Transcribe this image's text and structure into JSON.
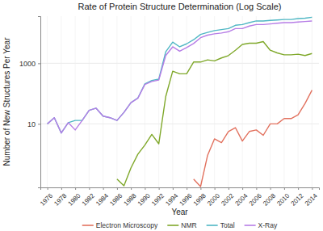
{
  "chart_data": {
    "type": "line",
    "title": "Rate of Protein Structure Determination (Log Scale)",
    "x_label": "Year",
    "y_label": "Number of New Structures Per Year",
    "x": [
      1976,
      1977,
      1978,
      1979,
      1980,
      1981,
      1982,
      1983,
      1984,
      1985,
      1986,
      1987,
      1988,
      1989,
      1990,
      1991,
      1992,
      1993,
      1994,
      1995,
      1996,
      1997,
      1998,
      1999,
      2000,
      2001,
      2002,
      2003,
      2004,
      2005,
      2006,
      2007,
      2008,
      2009,
      2010,
      2011,
      2012,
      2013,
      2014
    ],
    "xlim": [
      1975,
      2015
    ],
    "xticks": [
      1976,
      1978,
      1980,
      1982,
      1984,
      1986,
      1988,
      1990,
      1992,
      1994,
      1996,
      1998,
      2000,
      2002,
      2004,
      2006,
      2008,
      2010,
      2012,
      2014
    ],
    "ylim": [
      0.08,
      36000
    ],
    "yticks": [
      10,
      1000
    ],
    "log": "y",
    "grid": true,
    "legend": "bottom",
    "series": [
      {
        "name": "Electron Microscopy",
        "color": "#e2725f",
        "values": [
          null,
          null,
          null,
          null,
          null,
          null,
          null,
          null,
          null,
          null,
          null,
          null,
          null,
          null,
          null,
          null,
          null,
          null,
          null,
          null,
          null,
          0.15,
          0.085,
          0.9,
          3.2,
          2.4,
          5.6,
          7.5,
          2.7,
          5.6,
          6.3,
          4.2,
          10,
          10,
          15,
          15,
          20,
          47,
          130
        ]
      },
      {
        "name": "NMR",
        "color": "#7fa82a",
        "values": [
          null,
          null,
          null,
          null,
          null,
          null,
          null,
          null,
          null,
          null,
          0.15,
          0.09,
          0.35,
          1,
          2,
          4.5,
          2.2,
          80,
          550,
          450,
          450,
          1100,
          1100,
          1300,
          1200,
          1500,
          1800,
          2700,
          4200,
          4600,
          4600,
          5200,
          2700,
          2200,
          1900,
          1900,
          2000,
          1800,
          2100
        ]
      },
      {
        "name": "Total",
        "color": "#4fb7c4",
        "values": [
          10,
          16,
          5,
          11,
          13,
          13,
          28,
          33,
          18,
          16,
          13,
          24,
          50,
          72,
          210,
          270,
          300,
          2400,
          5000,
          3500,
          4400,
          6000,
          9000,
          10500,
          12000,
          13000,
          14000,
          18000,
          19000,
          22000,
          25000,
          25000,
          26000,
          27000,
          28000,
          28000,
          30000,
          31000,
          33000
        ]
      },
      {
        "name": "X-Ray",
        "color": "#b67de6",
        "values": [
          10,
          16,
          5,
          11,
          6.3,
          13,
          28,
          33,
          18,
          16,
          13,
          24,
          50,
          70,
          200,
          250,
          280,
          1800,
          3500,
          2500,
          3300,
          4500,
          7000,
          8500,
          9400,
          10000,
          11000,
          14000,
          14000,
          17000,
          19000,
          19000,
          20000,
          21000,
          22000,
          22000,
          23000,
          24000,
          25000
        ]
      }
    ]
  }
}
